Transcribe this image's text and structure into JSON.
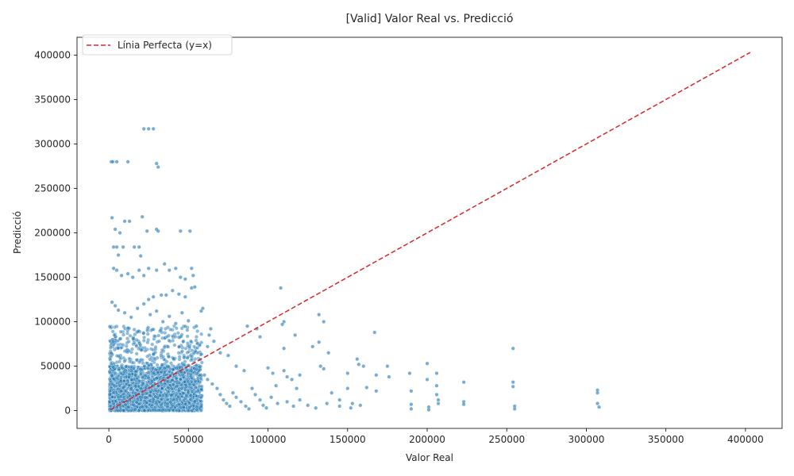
{
  "chart_data": {
    "type": "scatter",
    "title": "[Valid] Valor Real vs. Predicció",
    "xlabel": "Valor Real",
    "ylabel": "Predicció",
    "xlim": [
      -20000,
      423000
    ],
    "ylim": [
      -20000,
      420000
    ],
    "xticks": [
      0,
      50000,
      100000,
      150000,
      200000,
      250000,
      300000,
      350000,
      400000
    ],
    "yticks": [
      0,
      50000,
      100000,
      150000,
      200000,
      250000,
      300000,
      350000,
      400000
    ],
    "grid": false,
    "legend": {
      "placement": "top-left",
      "entries": [
        "Línia Perfecta (y=x)"
      ]
    },
    "colors": {
      "points": "#1f77b4",
      "reference_line": "#d62728"
    },
    "series": [
      {
        "type": "line",
        "style": "dashed",
        "name": "Línia Perfecta (y=x)",
        "x": [
          1000,
          403000
        ],
        "y": [
          1000,
          403000
        ]
      },
      {
        "type": "scatter",
        "points": [
          [
            1500,
            280000
          ],
          [
            2500,
            280000
          ],
          [
            5000,
            280000
          ],
          [
            12000,
            280000
          ],
          [
            30000,
            278000
          ],
          [
            31000,
            274000
          ],
          [
            22000,
            317000
          ],
          [
            25000,
            317000
          ],
          [
            28000,
            317000
          ],
          [
            30000,
            204000
          ],
          [
            31000,
            202000
          ],
          [
            45000,
            202000
          ],
          [
            51000,
            202000
          ],
          [
            2000,
            217000
          ],
          [
            10000,
            213000
          ],
          [
            13000,
            213000
          ],
          [
            21000,
            218000
          ],
          [
            4000,
            204000
          ],
          [
            7000,
            200000
          ],
          [
            24000,
            202000
          ],
          [
            3000,
            184000
          ],
          [
            5000,
            184000
          ],
          [
            9000,
            184000
          ],
          [
            16000,
            184000
          ],
          [
            19000,
            184000
          ],
          [
            6000,
            175000
          ],
          [
            20000,
            174000
          ],
          [
            3000,
            160000
          ],
          [
            5000,
            158000
          ],
          [
            8000,
            152000
          ],
          [
            12000,
            154000
          ],
          [
            15000,
            150000
          ],
          [
            19000,
            158000
          ],
          [
            22000,
            152000
          ],
          [
            25000,
            160000
          ],
          [
            30000,
            158000
          ],
          [
            35000,
            165000
          ],
          [
            38000,
            158000
          ],
          [
            42000,
            160000
          ],
          [
            45000,
            150000
          ],
          [
            48000,
            148000
          ],
          [
            52000,
            160000
          ],
          [
            53000,
            152000
          ],
          [
            52000,
            138000
          ],
          [
            54000,
            139000
          ],
          [
            40000,
            135000
          ],
          [
            33000,
            130000
          ],
          [
            28000,
            128000
          ],
          [
            36000,
            130000
          ],
          [
            44000,
            131000
          ],
          [
            48000,
            128000
          ],
          [
            25000,
            125000
          ],
          [
            2000,
            122000
          ],
          [
            4000,
            118000
          ],
          [
            6000,
            113000
          ],
          [
            10000,
            110000
          ],
          [
            14000,
            105000
          ],
          [
            18000,
            115000
          ],
          [
            22000,
            120000
          ],
          [
            26000,
            108000
          ],
          [
            30000,
            112000
          ],
          [
            34000,
            100000
          ],
          [
            38000,
            106000
          ],
          [
            42000,
            98000
          ],
          [
            46000,
            110000
          ],
          [
            50000,
            101000
          ],
          [
            55000,
            95000
          ],
          [
            58000,
            112000
          ],
          [
            59000,
            115000
          ],
          [
            64000,
            92000
          ],
          [
            63000,
            85000
          ],
          [
            62000,
            72000
          ],
          [
            66000,
            78000
          ],
          [
            70000,
            65000
          ],
          [
            75000,
            62000
          ],
          [
            80000,
            50000
          ],
          [
            85000,
            45000
          ],
          [
            87000,
            95000
          ],
          [
            93000,
            92000
          ],
          [
            95000,
            83000
          ],
          [
            100000,
            48000
          ],
          [
            103000,
            42000
          ],
          [
            105000,
            28000
          ],
          [
            108000,
            138000
          ],
          [
            110000,
            100000
          ],
          [
            109000,
            97000
          ],
          [
            110000,
            70000
          ],
          [
            110000,
            45000
          ],
          [
            112000,
            38000
          ],
          [
            115000,
            35000
          ],
          [
            117000,
            85000
          ],
          [
            118000,
            25000
          ],
          [
            120000,
            40000
          ],
          [
            128000,
            72000
          ],
          [
            132000,
            108000
          ],
          [
            135000,
            100000
          ],
          [
            138000,
            65000
          ],
          [
            132000,
            77000
          ],
          [
            133000,
            50000
          ],
          [
            135000,
            47000
          ],
          [
            140000,
            20000
          ],
          [
            145000,
            12000
          ],
          [
            150000,
            42000
          ],
          [
            150000,
            25000
          ],
          [
            153000,
            8000
          ],
          [
            156000,
            58000
          ],
          [
            157000,
            52000
          ],
          [
            160000,
            50000
          ],
          [
            162000,
            26000
          ],
          [
            167000,
            88000
          ],
          [
            168000,
            40000
          ],
          [
            168000,
            22000
          ],
          [
            175000,
            50000
          ],
          [
            176000,
            38000
          ],
          [
            189000,
            42000
          ],
          [
            190000,
            22000
          ],
          [
            190000,
            7000
          ],
          [
            190000,
            2000
          ],
          [
            200000,
            53000
          ],
          [
            200000,
            35000
          ],
          [
            201000,
            4000
          ],
          [
            201000,
            1000
          ],
          [
            206000,
            42000
          ],
          [
            206000,
            28000
          ],
          [
            206000,
            18000
          ],
          [
            207000,
            12000
          ],
          [
            207000,
            8000
          ],
          [
            223000,
            32000
          ],
          [
            223000,
            10000
          ],
          [
            223000,
            7000
          ],
          [
            254000,
            70000
          ],
          [
            254000,
            32000
          ],
          [
            254000,
            27000
          ],
          [
            255000,
            5000
          ],
          [
            255000,
            2000
          ],
          [
            307000,
            23000
          ],
          [
            307000,
            20000
          ],
          [
            307000,
            8000
          ],
          [
            308000,
            4000
          ],
          [
            60000,
            40000
          ],
          [
            62000,
            35000
          ],
          [
            65000,
            30000
          ],
          [
            68000,
            25000
          ],
          [
            70000,
            18000
          ],
          [
            72000,
            12000
          ],
          [
            74000,
            8000
          ],
          [
            76000,
            5000
          ],
          [
            78000,
            20000
          ],
          [
            80000,
            15000
          ],
          [
            83000,
            10000
          ],
          [
            86000,
            5000
          ],
          [
            88000,
            2000
          ],
          [
            90000,
            25000
          ],
          [
            92000,
            18000
          ],
          [
            95000,
            12000
          ],
          [
            97000,
            6000
          ],
          [
            99000,
            3000
          ],
          [
            102000,
            15000
          ],
          [
            106000,
            8000
          ],
          [
            112000,
            10000
          ],
          [
            116000,
            5000
          ],
          [
            120000,
            12000
          ],
          [
            125000,
            6000
          ],
          [
            130000,
            3000
          ],
          [
            137000,
            8000
          ],
          [
            145000,
            5000
          ],
          [
            152000,
            3000
          ],
          [
            158000,
            6000
          ]
        ]
      }
    ]
  }
}
